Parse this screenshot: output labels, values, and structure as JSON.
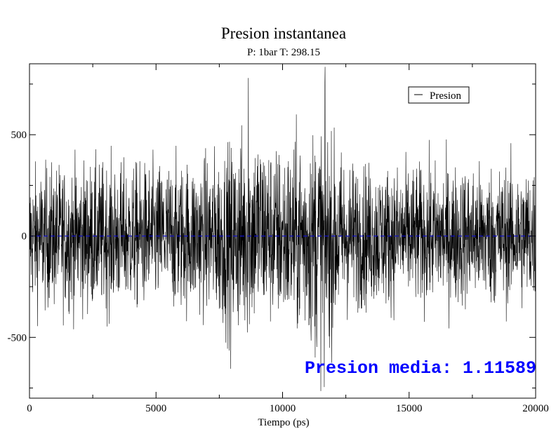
{
  "chart_data": {
    "type": "line",
    "title": "Presion instantanea",
    "subtitle": "P: 1bar T: 298.15",
    "xlabel": "Tiempo (ps)",
    "ylabel": "",
    "xlim": [
      0,
      20000
    ],
    "ylim": [
      -800,
      850
    ],
    "x_ticks": [
      0,
      5000,
      10000,
      15000,
      20000
    ],
    "x_tick_labels": [
      "0",
      "5000",
      "10000",
      "15000",
      "20000"
    ],
    "y_ticks": [
      -500,
      0,
      500
    ],
    "y_tick_labels": [
      "-500",
      "0",
      "500"
    ],
    "grid": false,
    "legend_position": "top-right",
    "series": [
      {
        "name": "Presion",
        "color": "#000000",
        "sampling_interval_ps": 2,
        "envelope": {
          "x": [
            0,
            1000,
            2000,
            3000,
            4000,
            5000,
            6000,
            7000,
            8000,
            8500,
            9000,
            9500,
            10000,
            11000,
            11500,
            12000,
            12500,
            13000,
            14000,
            15000,
            16000,
            17000,
            18000,
            19000,
            20000
          ],
          "upper": [
            300,
            320,
            330,
            330,
            320,
            330,
            340,
            360,
            420,
            480,
            500,
            420,
            400,
            470,
            520,
            420,
            360,
            330,
            320,
            320,
            320,
            320,
            320,
            320,
            320
          ],
          "lower": [
            -320,
            -330,
            -340,
            -340,
            -330,
            -330,
            -340,
            -360,
            -440,
            -460,
            -420,
            -400,
            -420,
            -470,
            -560,
            -460,
            -360,
            -330,
            -320,
            -320,
            -320,
            -320,
            -320,
            -320,
            -320
          ]
        },
        "peaks": [
          {
            "x": 11680,
            "y": 835
          },
          {
            "x": 11650,
            "y": -745
          },
          {
            "x": 9100,
            "y": 790
          },
          {
            "x": 8650,
            "y": 780
          },
          {
            "x": 7950,
            "y": -655
          }
        ]
      }
    ],
    "reference_line": {
      "y": 0,
      "color": "#1010c8",
      "style": "dashed"
    },
    "annotation": {
      "text": "Presion media: 1.11589",
      "color": "#0000ff"
    }
  }
}
